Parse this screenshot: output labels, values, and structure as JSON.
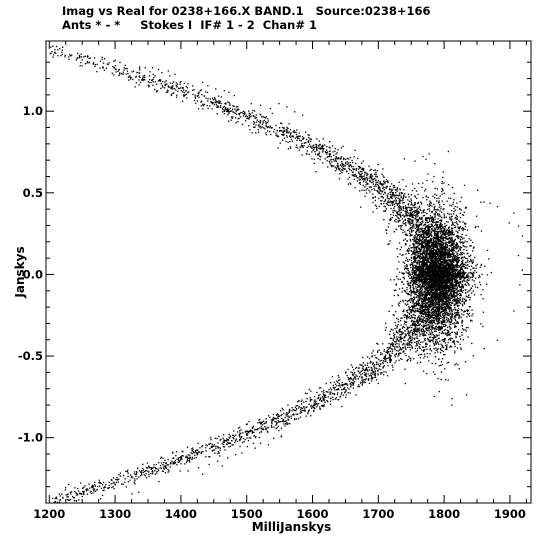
{
  "header": {
    "line1": "Imag vs Real for 0238+166.X BAND.1   Source:0238+166",
    "line2": "Ants * - *     Stokes I  IF# 1 - 2  Chan# 1"
  },
  "chart_data": {
    "type": "scatter",
    "title": "Imag vs Real for 0238+166.X BAND.1   Source:0238+166",
    "subtitle": "Ants * - *     Stokes I  IF# 1 - 2  Chan# 1",
    "xlabel": "MilliJanskys",
    "ylabel": "Janskys",
    "xlim": [
      1195,
      1932
    ],
    "ylim": [
      -1.4,
      1.43
    ],
    "xticks": [
      1200,
      1300,
      1400,
      1500,
      1600,
      1700,
      1800,
      1900
    ],
    "yticks": [
      -1.0,
      -0.5,
      0.0,
      0.5,
      1.0
    ],
    "xtick_labels": [
      "1200",
      "1300",
      "1400",
      "1500",
      "1600",
      "1700",
      "1800",
      "1900"
    ],
    "ytick_labels": [
      "-1.0",
      "-0.5",
      "0.0",
      "0.5",
      "1.0"
    ],
    "grid": false,
    "marker_color": "#000000",
    "series": [
      {
        "description": "dense cluster of visibilities",
        "center": [
          1790,
          0.0
        ],
        "spread": [
          22,
          0.22
        ],
        "count": 3500
      },
      {
        "description": "arc of visibilities",
        "x_at_zero": 1790,
        "x_at_extreme": 1205,
        "y_extreme": 1.38,
        "count": 5000
      },
      {
        "points": [
          [
            1210,
            1.4
          ],
          [
            1212,
            1.38
          ],
          [
            1290,
            1.3
          ],
          [
            1345,
            1.27
          ],
          [
            1356,
            1.27
          ],
          [
            1365,
            1.26
          ],
          [
            1370,
            1.24
          ],
          [
            1382,
            1.22
          ],
          [
            1390,
            1.23
          ],
          [
            1380,
            1.25
          ],
          [
            1432,
            1.18
          ],
          [
            1440,
            1.16
          ],
          [
            1452,
            1.14
          ],
          [
            1465,
            1.13
          ],
          [
            1472,
            1.12
          ],
          [
            1480,
            1.1
          ],
          [
            1506,
            1.05
          ],
          [
            1520,
            1.04
          ],
          [
            1535,
            1.02
          ],
          [
            1548,
            1.05
          ],
          [
            1560,
            1.03
          ],
          [
            1572,
            1.0
          ],
          [
            1584,
            0.98
          ],
          [
            1503,
            0.98
          ],
          [
            1538,
            0.99
          ],
          [
            1277,
            -1.37
          ],
          [
            1280,
            -1.35
          ],
          [
            1325,
            -1.34
          ],
          [
            1335,
            -1.33
          ],
          [
            1398,
            -1.2
          ],
          [
            1410,
            -1.2
          ],
          [
            1426,
            -1.18
          ],
          [
            1432,
            -1.22
          ],
          [
            1442,
            -1.16
          ],
          [
            1455,
            -1.14
          ],
          [
            1462,
            -1.17
          ],
          [
            1470,
            -1.12
          ],
          [
            1482,
            -1.1
          ],
          [
            1492,
            -1.09
          ],
          [
            1500,
            -1.05
          ],
          [
            1512,
            -1.06
          ],
          [
            1520,
            -1.03
          ],
          [
            1532,
            -1.04
          ],
          [
            1540,
            -1.0
          ],
          [
            1552,
            -0.99
          ],
          [
            1905,
            0.38
          ],
          [
            1912,
            0.3
          ],
          [
            1918,
            0.24
          ],
          [
            1912,
            0.12
          ],
          [
            1918,
            0.03
          ],
          [
            1914,
            -0.06
          ],
          [
            1905,
            -0.22
          ],
          [
            1880,
            0.42
          ],
          [
            1850,
            0.52
          ],
          [
            1860,
            -0.45
          ],
          [
            1830,
            0.55
          ],
          [
            1820,
            -0.55
          ],
          [
            1869,
            0.44
          ],
          [
            1880,
            -0.4
          ],
          [
            1898,
            0.32
          ]
        ]
      }
    ]
  }
}
